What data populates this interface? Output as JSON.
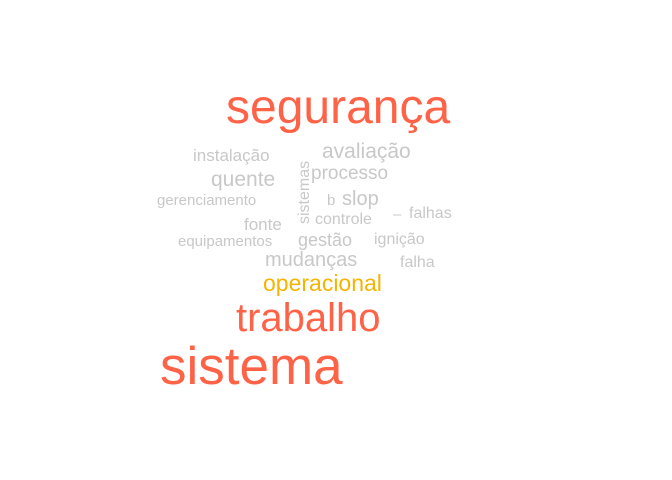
{
  "word_cloud": {
    "colors": {
      "primary": "#ff6347",
      "accent": "#f5b400",
      "minor": "#c8c8c8"
    },
    "words": {
      "seguranca": "segurança",
      "sistema": "sistema",
      "trabalho": "trabalho",
      "operacional": "operacional",
      "avaliacao": "avaliação",
      "instalacao": "instalação",
      "quente": "quente",
      "processo": "processo",
      "sistemas": "sistemas",
      "gerenciamento": "gerenciamento",
      "b": "b",
      "slop": "slop",
      "fonte": "fonte",
      "controle": "controle",
      "dash": "–",
      "falhas": "falhas",
      "equipamentos": "equipamentos",
      "gestao": "gestão",
      "ignicao": "ignição",
      "mudancas": "mudanças",
      "falha": "falha"
    }
  }
}
